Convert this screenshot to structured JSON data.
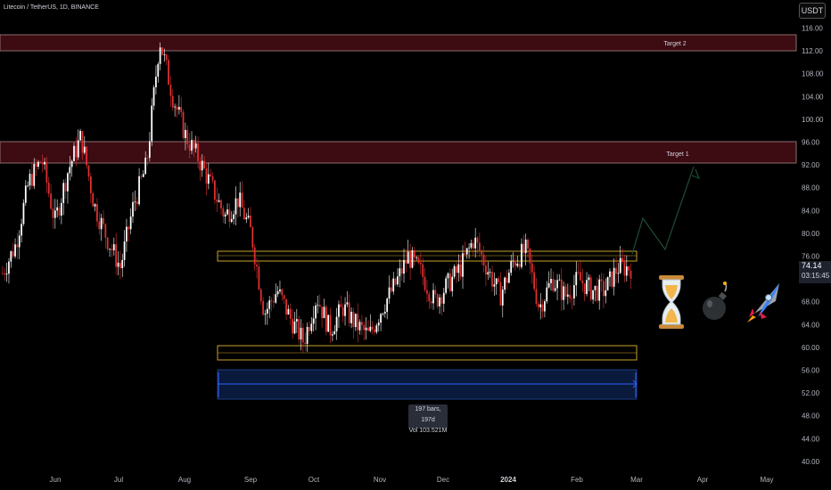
{
  "header": {
    "symbol": "Litecoin / TetherUS, 1D, BINANCE",
    "currency": "USDT"
  },
  "price_tag": {
    "price": "74.14",
    "countdown": "03:15:45"
  },
  "measure": {
    "bars": "197 bars, 197d",
    "vol": "Vol 103.521M"
  },
  "zones": [
    {
      "label": "Target 2",
      "low": 112,
      "high": 115
    },
    {
      "label": "Target 1",
      "low": 92,
      "high": 96
    }
  ],
  "icons": [
    "hourglass-icon",
    "bomb-icon",
    "rocket-icon"
  ],
  "chart_data": {
    "type": "candlestick",
    "x_ticks": [
      "Jun",
      "Jul",
      "Aug",
      "Sep",
      "Oct",
      "Nov",
      "Dec",
      "2024",
      "Feb",
      "Mar",
      "Apr",
      "May"
    ],
    "y_ticks": [
      116,
      112,
      108,
      104,
      100,
      96,
      92,
      88,
      84,
      80,
      76,
      72,
      68,
      64,
      60,
      56,
      52,
      48,
      44,
      40
    ],
    "ylim": [
      40,
      116
    ],
    "close_path": [
      73,
      78,
      89,
      93,
      82,
      91,
      97,
      85,
      79,
      74,
      85,
      92,
      114,
      104,
      97,
      93,
      88,
      83,
      86,
      80,
      66,
      70,
      65,
      61,
      69,
      63,
      67,
      64,
      62,
      67,
      71,
      76,
      73,
      68,
      71,
      74,
      79,
      74,
      69,
      75,
      77,
      67,
      72,
      69,
      72,
      70,
      70,
      74,
      74
    ],
    "up_color": "#ffffff",
    "down_color": "#e03131"
  }
}
